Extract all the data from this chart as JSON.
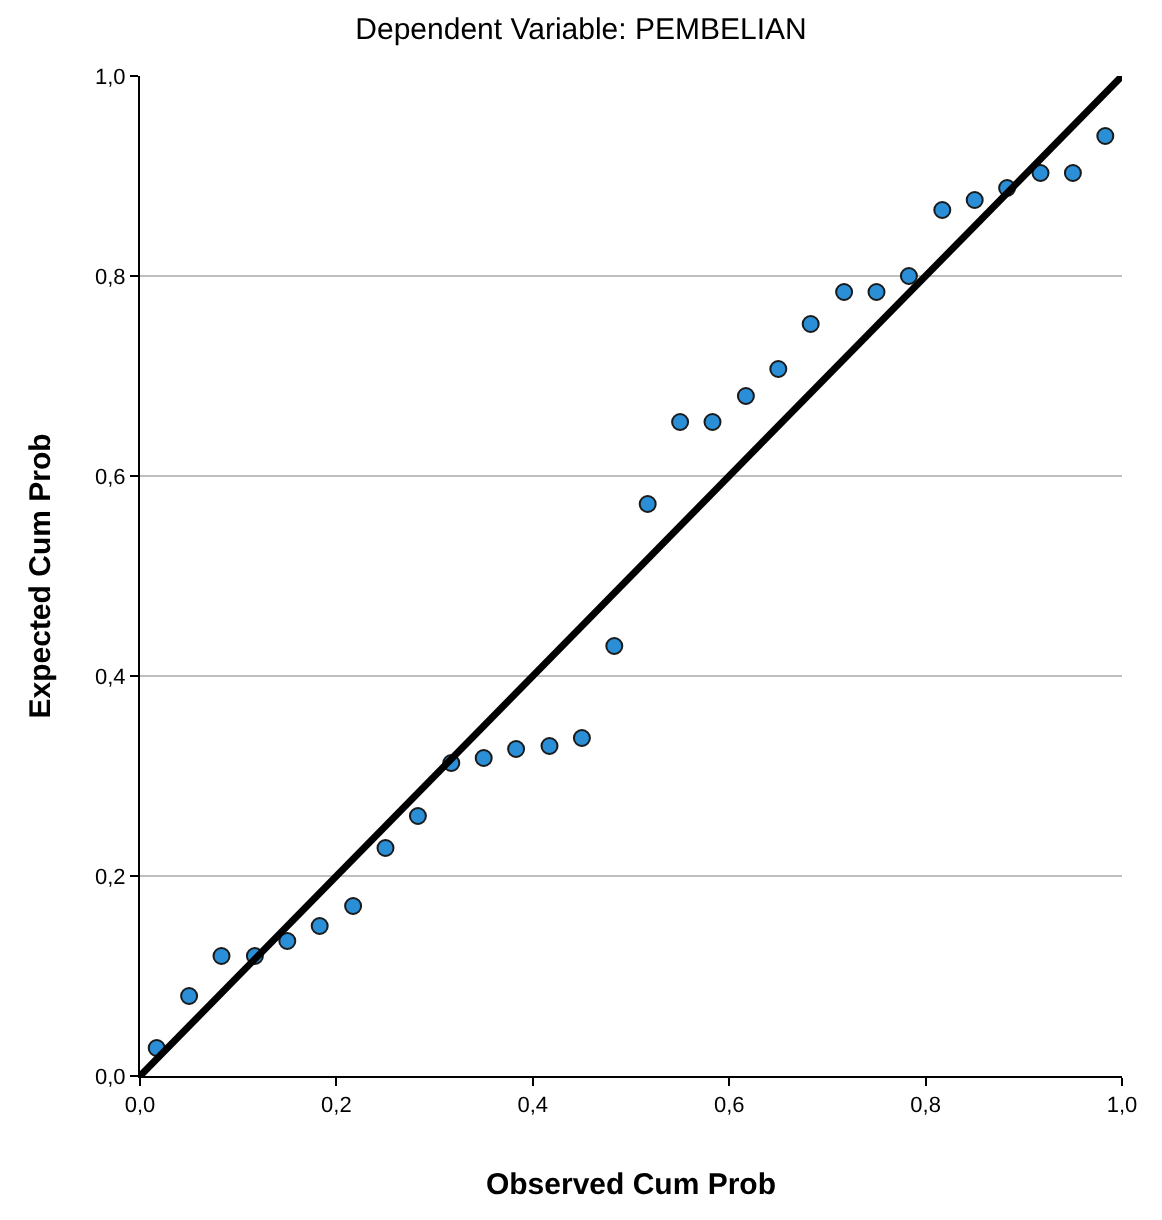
{
  "chart_data": {
    "type": "scatter",
    "title": "Dependent Variable: PEMBELIAN",
    "xlabel": "Observed Cum Prob",
    "ylabel": "Expected Cum Prob",
    "xlim": [
      0,
      1
    ],
    "ylim": [
      0,
      1
    ],
    "xticks": [
      {
        "value": 0,
        "label": "0,0"
      },
      {
        "value": 0.2,
        "label": "0,2"
      },
      {
        "value": 0.4,
        "label": "0,4"
      },
      {
        "value": 0.6,
        "label": "0,6"
      },
      {
        "value": 0.8,
        "label": "0,8"
      },
      {
        "value": 1,
        "label": "1,0"
      }
    ],
    "yticks": [
      {
        "value": 0,
        "label": "0,0"
      },
      {
        "value": 0.2,
        "label": "0,2"
      },
      {
        "value": 0.4,
        "label": "0,4"
      },
      {
        "value": 0.6,
        "label": "0,6"
      },
      {
        "value": 0.8,
        "label": "0,8"
      },
      {
        "value": 1,
        "label": "1,0"
      }
    ],
    "grid": "y",
    "legend": false,
    "series": [
      {
        "marker": "circle",
        "color": "#2a8fd6",
        "x": [
          0.017,
          0.05,
          0.083,
          0.117,
          0.15,
          0.183,
          0.217,
          0.25,
          0.283,
          0.317,
          0.35,
          0.383,
          0.417,
          0.45,
          0.483,
          0.517,
          0.55,
          0.583,
          0.617,
          0.65,
          0.683,
          0.717,
          0.75,
          0.783,
          0.817,
          0.85,
          0.883,
          0.917,
          0.95,
          0.983
        ],
        "values": [
          0.028,
          0.08,
          0.12,
          0.12,
          0.135,
          0.15,
          0.17,
          0.228,
          0.26,
          0.313,
          0.318,
          0.327,
          0.33,
          0.338,
          0.43,
          0.572,
          0.654,
          0.654,
          0.68,
          0.707,
          0.752,
          0.784,
          0.784,
          0.8,
          0.866,
          0.876,
          0.888,
          0.903,
          0.903,
          0.94
        ]
      },
      {
        "type": "line",
        "color": "#000000",
        "x": [
          0,
          1
        ],
        "values": [
          0,
          1
        ]
      }
    ]
  }
}
